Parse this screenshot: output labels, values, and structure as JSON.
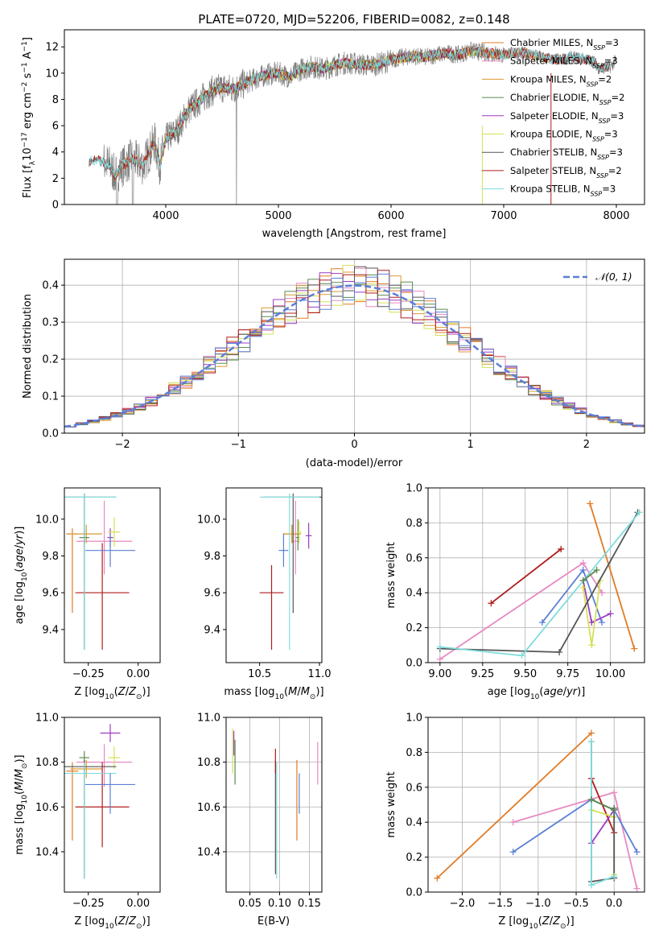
{
  "colors": {
    "Chabrier MILES": "#e07b25",
    "Salpeter MILES": "#e78ac3",
    "Kroupa MILES": "#d99a2e",
    "Chabrier ELODIE": "#5b8a4f",
    "Salpeter ELODIE": "#9b3cc0",
    "Kroupa ELODIE": "#d4e157",
    "Chabrier STELIB": "#555555",
    "Salpeter STELIB": "#b01c1c",
    "Kroupa STELIB": "#7fdcdc",
    "blue": "#5b7fd6",
    "data": "#808080"
  },
  "chart_data": [
    {
      "type": "line",
      "title": "PLATE=0720, MJD=52206, FIBERID=0082, z=0.148",
      "xlabel": "wavelength [Angstrom, rest frame]",
      "ylabel": "Flux [fλ10⁻¹⁷ erg cm⁻² s⁻¹ A⁻¹]",
      "xlim": [
        3100,
        8250
      ],
      "ylim": [
        0,
        13.3
      ],
      "xticks": [
        4000,
        5000,
        6000,
        7000,
        8000
      ],
      "yticks": [
        0,
        2,
        4,
        6,
        8,
        10,
        12
      ],
      "legend_position": "top-right",
      "data_spectrum": {
        "name": "",
        "x": [
          3320,
          3400,
          3500,
          3550,
          3600,
          3700,
          3800,
          3900,
          3950,
          4000,
          4100,
          4200,
          4300,
          4400,
          4500,
          4600,
          4700,
          4800,
          4900,
          5000,
          5100,
          5200,
          5300,
          5400,
          5500,
          5600,
          5700,
          5800,
          5900,
          6000,
          6100,
          6200,
          6300,
          6400,
          6500,
          6600,
          6700,
          6800,
          6900,
          7000,
          7100,
          7200,
          7300,
          7400,
          7500,
          7600,
          7700,
          7800,
          7850,
          7950,
          8000
        ],
        "y": [
          3.3,
          3.4,
          3.0,
          2.2,
          2.8,
          3.5,
          3.0,
          4.8,
          3.0,
          5.0,
          5.6,
          7.2,
          7.9,
          8.6,
          8.9,
          8.8,
          9.2,
          9.6,
          9.9,
          10.0,
          9.7,
          10.3,
          10.5,
          10.3,
          10.6,
          10.8,
          10.7,
          10.6,
          10.7,
          11.0,
          11.2,
          11.3,
          11.2,
          11.4,
          11.5,
          11.4,
          11.7,
          11.6,
          11.5,
          11.4,
          11.6,
          11.5,
          11.3,
          11.1,
          11.0,
          11.2,
          11.1,
          10.9,
          10.3,
          10.5,
          11.0
        ]
      },
      "series": [
        {
          "name": "Chabrier MILES, NSSP=3"
        },
        {
          "name": "Salpeter MILES, NSSP=3"
        },
        {
          "name": "Kroupa MILES, NSSP=2"
        },
        {
          "name": "Chabrier ELODIE, NSSP=2"
        },
        {
          "name": "Salpeter ELODIE, NSSP=3"
        },
        {
          "name": "Kroupa ELODIE, NSSP=3"
        },
        {
          "name": "Chabrier STELIB, NSSP=3"
        },
        {
          "name": "Salpeter STELIB, NSSP=2"
        },
        {
          "name": "Kroupa STELIB, NSSP=3"
        }
      ]
    },
    {
      "type": "line",
      "xlabel": "(data-model)/error",
      "ylabel": "Normed distribution",
      "xlim": [
        -2.5,
        2.5
      ],
      "ylim": [
        0,
        0.47
      ],
      "xticks": [
        -2,
        -1,
        0,
        1,
        2
      ],
      "yticks": [
        0.0,
        0.1,
        0.2,
        0.3,
        0.4
      ],
      "grid": true,
      "legend_position": "top-right",
      "reference_curve": {
        "name": "𝒩(0, 1)",
        "mean": 0,
        "sigma": 1
      },
      "histogram_bin_width": 0.1,
      "histograms": "9 step histograms, one per model, closely following N(0,1) with peaks near 0.43-0.45"
    },
    {
      "type": "scatter",
      "xlabel": "Z [log10(Z/Z☉)]",
      "ylabel": "age  [log10(age/yr)]",
      "xlim": [
        -0.37,
        0.11
      ],
      "ylim": [
        9.22,
        10.17
      ],
      "xticks": [
        -0.25,
        0.0
      ],
      "yticks": [
        9.4,
        9.6,
        9.8,
        10.0
      ],
      "points": [
        {
          "model": "Chabrier MILES",
          "x": -0.33,
          "y": 9.92,
          "xerr": 0.06,
          "yerr": [
            0.43,
            0.03
          ]
        },
        {
          "model": "Salpeter MILES",
          "x": -0.17,
          "y": 9.88,
          "xerr": 0.28,
          "yerr": [
            0.18,
            0.22
          ]
        },
        {
          "model": "Kroupa MILES",
          "x": -0.26,
          "y": 9.92,
          "xerr": 0.16,
          "yerr": [
            0.05,
            0.05
          ]
        },
        {
          "model": "Chabrier ELODIE",
          "x": -0.27,
          "y": 9.9,
          "xerr": 0.05,
          "yerr": [
            0.05,
            0.05
          ]
        },
        {
          "model": "Salpeter ELODIE",
          "x": -0.14,
          "y": 9.9,
          "xerr": 0.03,
          "yerr": [
            0.05,
            0.05
          ]
        },
        {
          "model": "Kroupa ELODIE",
          "x": -0.12,
          "y": 9.93,
          "xerr": 0.06,
          "yerr": [
            0.08,
            0.08
          ]
        },
        {
          "model": "Chabrier STELIB",
          "x": -0.27,
          "y": 10.12,
          "xerr": 0.32,
          "yerr": [
            0.83,
            0.02
          ]
        },
        {
          "model": "Salpeter STELIB",
          "x": -0.18,
          "y": 9.6,
          "xerr": 0.27,
          "yerr": [
            0.31,
            0.27
          ]
        },
        {
          "model": "Kroupa STELIB",
          "x": -0.27,
          "y": 10.12,
          "xerr": 0.32,
          "yerr": [
            0.83,
            0.02
          ]
        },
        {
          "model": "blue",
          "x": -0.14,
          "y": 9.83,
          "xerr": 0.25,
          "yerr": [
            0.09,
            0.09
          ]
        }
      ]
    },
    {
      "type": "scatter",
      "xlabel": "mass [log10(M/M☉)]",
      "ylabel": "",
      "xlim": [
        10.22,
        11.02
      ],
      "ylim": [
        9.22,
        10.17
      ],
      "xticks": [
        10.5,
        11.0
      ],
      "yticks": [
        9.4,
        9.6,
        9.8,
        10.0
      ],
      "points": [
        {
          "model": "Chabrier MILES",
          "x": 10.77,
          "y": 9.92,
          "xerr": 0.15,
          "yerr": [
            0.05,
            0.05
          ]
        },
        {
          "model": "Salpeter MILES",
          "x": 10.8,
          "y": 9.88,
          "xerr": 0.06,
          "yerr": [
            0.18,
            0.22
          ]
        },
        {
          "model": "Kroupa MILES",
          "x": 10.77,
          "y": 9.92,
          "xerr": 0.15,
          "yerr": [
            0.05,
            0.05
          ]
        },
        {
          "model": "Chabrier ELODIE",
          "x": 10.82,
          "y": 9.9,
          "xerr": 0.03,
          "yerr": [
            0.07,
            0.1
          ]
        },
        {
          "model": "Salpeter ELODIE",
          "x": 10.91,
          "y": 9.91,
          "xerr": 0.05,
          "yerr": [
            0.07,
            0.07
          ]
        },
        {
          "model": "Kroupa ELODIE",
          "x": 10.83,
          "y": 9.93,
          "xerr": 0.04,
          "yerr": [
            0.06,
            0.06
          ]
        },
        {
          "model": "Chabrier STELIB",
          "x": 10.78,
          "y": 10.12,
          "xerr": 0.5,
          "yerr": [
            0.63,
            0.02
          ]
        },
        {
          "model": "Salpeter STELIB",
          "x": 10.6,
          "y": 9.6,
          "xerr": 0.2,
          "yerr": [
            0.31,
            0.15
          ]
        },
        {
          "model": "Kroupa STELIB",
          "x": 10.75,
          "y": 10.12,
          "xerr": 0.5,
          "yerr": [
            0.83,
            0.02
          ]
        },
        {
          "model": "blue",
          "x": 10.7,
          "y": 9.83,
          "xerr": 0.08,
          "yerr": [
            0.09,
            0.09
          ]
        }
      ]
    },
    {
      "type": "line",
      "xlabel": "age  [log10(age/yr)]",
      "ylabel": "mass weight",
      "xlim": [
        8.93,
        10.2
      ],
      "ylim": [
        0,
        1.0
      ],
      "xticks": [
        9.0,
        9.25,
        9.5,
        9.75,
        10.0
      ],
      "yticks": [
        0.0,
        0.2,
        0.4,
        0.6,
        0.8,
        1.0
      ],
      "grid": true,
      "series": [
        {
          "model": "Chabrier MILES",
          "x": [
            9.88,
            10.14
          ],
          "y": [
            0.91,
            0.08
          ]
        },
        {
          "model": "Salpeter MILES",
          "x": [
            9.0,
            9.84,
            9.95
          ],
          "y": [
            0.02,
            0.57,
            0.4
          ]
        },
        {
          "model": "Salpeter STELIB",
          "x": [
            9.3,
            9.71
          ],
          "y": [
            0.34,
            0.65
          ]
        },
        {
          "model": "blue",
          "x": [
            9.6,
            9.84,
            9.95
          ],
          "y": [
            0.23,
            0.53,
            0.23
          ]
        },
        {
          "model": "Salpeter ELODIE",
          "x": [
            9.84,
            9.89,
            10.0
          ],
          "y": [
            0.47,
            0.23,
            0.28
          ]
        },
        {
          "model": "Kroupa ELODIE",
          "x": [
            9.84,
            9.89,
            9.94
          ],
          "y": [
            0.43,
            0.1,
            0.47
          ]
        },
        {
          "model": "Chabrier STELIB",
          "x": [
            9.0,
            9.7,
            10.16
          ],
          "y": [
            0.08,
            0.06,
            0.86
          ]
        },
        {
          "model": "Kroupa STELIB",
          "x": [
            9.0,
            9.48,
            10.17
          ],
          "y": [
            0.09,
            0.04,
            0.86
          ]
        },
        {
          "model": "Chabrier ELODIE",
          "x": [
            9.84,
            9.92
          ],
          "y": [
            0.47,
            0.53
          ]
        }
      ]
    },
    {
      "type": "scatter",
      "xlabel": "Z [log10(Z/Z☉)]",
      "ylabel": "mass [log10(M/M☉)]",
      "xlim": [
        -0.37,
        0.11
      ],
      "ylim": [
        10.22,
        11.0
      ],
      "xticks": [
        -0.25,
        0.0
      ],
      "yticks": [
        10.4,
        10.6,
        10.8,
        11.0
      ],
      "points": [
        {
          "model": "Chabrier MILES",
          "x": -0.33,
          "y": 10.76,
          "xerr": 0.06,
          "yerr": [
            0.31,
            0.04
          ]
        },
        {
          "model": "Salpeter MILES",
          "x": -0.17,
          "y": 10.8,
          "xerr": 0.28,
          "yerr": [
            0.11,
            0.08
          ]
        },
        {
          "model": "Kroupa MILES",
          "x": -0.26,
          "y": 10.77,
          "xerr": 0.16,
          "yerr": [
            0.04,
            0.04
          ]
        },
        {
          "model": "Chabrier ELODIE",
          "x": -0.27,
          "y": 10.82,
          "xerr": 0.05,
          "yerr": [
            0.03,
            0.03
          ]
        },
        {
          "model": "Salpeter ELODIE",
          "x": -0.14,
          "y": 10.93,
          "xerr": 0.1,
          "yerr": [
            0.04,
            0.04
          ]
        },
        {
          "model": "Kroupa ELODIE",
          "x": -0.12,
          "y": 10.82,
          "xerr": 0.06,
          "yerr": [
            0.05,
            0.05
          ]
        },
        {
          "model": "Chabrier STELIB",
          "x": -0.27,
          "y": 10.78,
          "xerr": 0.32,
          "yerr": [
            0.5,
            0.03
          ]
        },
        {
          "model": "Salpeter STELIB",
          "x": -0.18,
          "y": 10.6,
          "xerr": 0.27,
          "yerr": [
            0.18,
            0.2
          ]
        },
        {
          "model": "Kroupa STELIB",
          "x": -0.27,
          "y": 10.75,
          "xerr": 0.32,
          "yerr": [
            0.47,
            0.05
          ]
        },
        {
          "model": "blue",
          "x": -0.14,
          "y": 10.7,
          "xerr": 0.25,
          "yerr": [
            0.13,
            0.05
          ]
        }
      ]
    },
    {
      "type": "scatter",
      "xlabel": "E(B-V)",
      "ylabel": "",
      "xlim": [
        0.01,
        0.171
      ],
      "ylim": [
        10.22,
        11.0
      ],
      "xticks": [
        0.05,
        0.1,
        0.15
      ],
      "yticks": [
        10.4,
        10.6,
        10.8,
        11.0
      ],
      "grid": true,
      "points": [
        {
          "model": "Kroupa ELODIE",
          "x": 0.021,
          "y": 10.85,
          "yerr": [
            0.1,
            0.1
          ]
        },
        {
          "model": "Salpeter ELODIE",
          "x": 0.023,
          "y": 10.88,
          "yerr": [
            0.05,
            0.06
          ]
        },
        {
          "model": "Chabrier ELODIE",
          "x": 0.025,
          "y": 10.82,
          "yerr": [
            0.12,
            0.08
          ]
        },
        {
          "model": "Chabrier STELIB",
          "x": 0.093,
          "y": 10.78,
          "yerr": [
            0.48,
            0.03
          ]
        },
        {
          "model": "Salpeter STELIB",
          "x": 0.093,
          "y": 10.8,
          "yerr": [
            0.05,
            0.06
          ]
        },
        {
          "model": "Kroupa STELIB",
          "x": 0.095,
          "y": 10.75,
          "yerr": [
            0.47,
            0.05
          ]
        },
        {
          "model": "Chabrier MILES",
          "x": 0.129,
          "y": 10.77,
          "yerr": [
            0.32,
            0.04
          ]
        },
        {
          "model": "blue",
          "x": 0.133,
          "y": 10.7,
          "yerr": [
            0.13,
            0.05
          ]
        },
        {
          "model": "Salpeter MILES",
          "x": 0.164,
          "y": 10.8,
          "yerr": [
            0.1,
            0.09
          ]
        }
      ]
    },
    {
      "type": "line",
      "xlabel": "Z [log10(Z/Z☉)]",
      "ylabel": "mass weight",
      "xlim": [
        -2.45,
        0.4
      ],
      "ylim": [
        0,
        1.0
      ],
      "xticks": [
        -2.0,
        -1.5,
        -1.0,
        -0.5,
        0.0
      ],
      "yticks": [
        0.0,
        0.2,
        0.4,
        0.6,
        0.8,
        1.0
      ],
      "grid": true,
      "series": [
        {
          "model": "Chabrier MILES",
          "x": [
            -2.33,
            -0.3
          ],
          "y": [
            0.08,
            0.91
          ]
        },
        {
          "model": "Salpeter MILES",
          "x": [
            -1.33,
            0.0,
            0.3
          ],
          "y": [
            0.4,
            0.57,
            0.02
          ]
        },
        {
          "model": "blue",
          "x": [
            -1.33,
            -0.3,
            0.0,
            0.3
          ],
          "y": [
            0.23,
            0.53,
            0.47,
            0.23
          ]
        },
        {
          "model": "Salpeter STELIB",
          "x": [
            -0.3,
            0.0
          ],
          "y": [
            0.65,
            0.34
          ]
        },
        {
          "model": "Salpeter ELODIE",
          "x": [
            -0.3,
            0.0
          ],
          "y": [
            0.28,
            0.47
          ]
        },
        {
          "model": "Kroupa ELODIE",
          "x": [
            -0.3,
            0.0,
            0.0
          ],
          "y": [
            0.47,
            0.43,
            0.1
          ]
        },
        {
          "model": "Chabrier STELIB",
          "x": [
            -0.3,
            -0.3,
            0.0,
            0.0
          ],
          "y": [
            0.86,
            0.06,
            0.08,
            0.48
          ]
        },
        {
          "model": "Kroupa STELIB",
          "x": [
            -0.3,
            -0.3,
            0.0
          ],
          "y": [
            0.86,
            0.04,
            0.09
          ]
        },
        {
          "model": "Chabrier ELODIE",
          "x": [
            -0.3,
            0.0
          ],
          "y": [
            0.53,
            0.47
          ]
        }
      ]
    }
  ]
}
